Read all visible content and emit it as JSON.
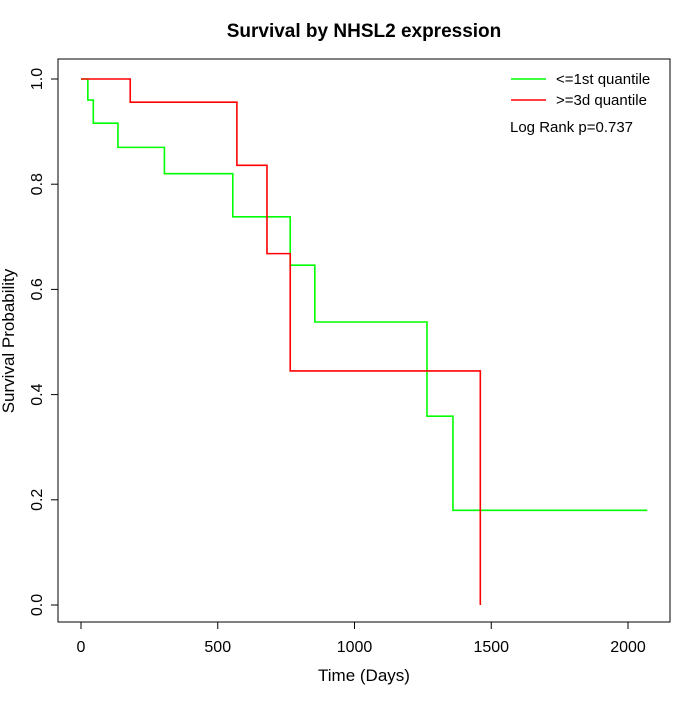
{
  "chart_data": {
    "type": "line",
    "step": true,
    "title": "Survival by NHSL2 expression",
    "xlabel": "Time (Days)",
    "ylabel": "Survival Probability",
    "xlim": [
      0,
      2070
    ],
    "ylim": [
      0,
      1
    ],
    "x_ticks": [
      0,
      500,
      1000,
      1500,
      2000
    ],
    "x_tick_labels": [
      "0",
      "500",
      "1000",
      "1500",
      "2000"
    ],
    "y_ticks": [
      0,
      0.2,
      0.4,
      0.6,
      0.8,
      1.0
    ],
    "y_tick_labels": [
      "0.0",
      "0.2",
      "0.4",
      "0.6",
      "0.8",
      "1.0"
    ],
    "grid": false,
    "legend_position": "top-right",
    "annotation": "Log Rank p=0.737",
    "series": [
      {
        "name": "<=1st quantile",
        "color": "#00ff00",
        "x": [
          0,
          25,
          45,
          135,
          305,
          555,
          765,
          855,
          1265,
          1360,
          2070
        ],
        "y": [
          1.0,
          0.96,
          0.916,
          0.87,
          0.82,
          0.738,
          0.646,
          0.538,
          0.359,
          0.18,
          0.18
        ]
      },
      {
        "name": ">=3d quantile",
        "color": "#ff0000",
        "x": [
          0,
          180,
          570,
          680,
          765,
          1460,
          1460
        ],
        "y": [
          1.0,
          0.956,
          0.836,
          0.668,
          0.445,
          0.445,
          0.0
        ]
      }
    ]
  }
}
